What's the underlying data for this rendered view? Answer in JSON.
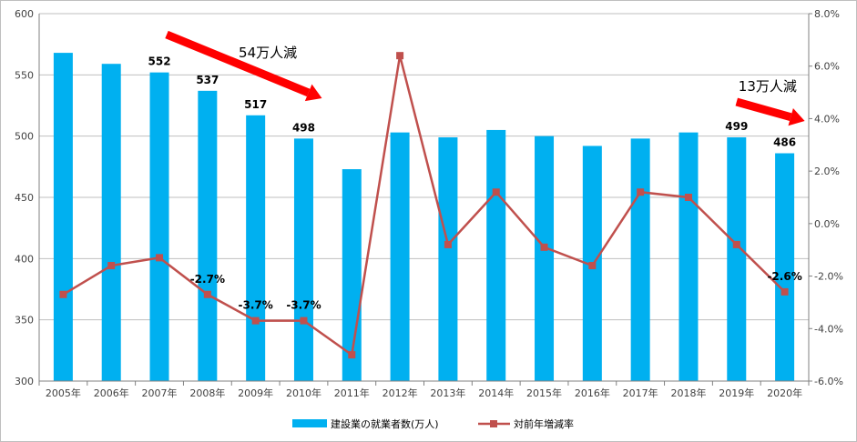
{
  "chart_data": {
    "type": "bar+line",
    "categories": [
      "2005年",
      "2006年",
      "2007年",
      "2008年",
      "2009年",
      "2010年",
      "2011年",
      "2012年",
      "2013年",
      "2014年",
      "2015年",
      "2016年",
      "2017年",
      "2018年",
      "2019年",
      "2020年"
    ],
    "series": [
      {
        "name": "建設業の就業者数(万人)",
        "type": "bar",
        "axis": "left",
        "color": "#00b0f0",
        "values": [
          568,
          559,
          552,
          537,
          517,
          498,
          473,
          503,
          499,
          505,
          500,
          492,
          498,
          503,
          499,
          486
        ]
      },
      {
        "name": "対前年増減率",
        "type": "line",
        "axis": "right",
        "color": "#c0504d",
        "values": [
          -2.7,
          -1.6,
          -1.3,
          -2.7,
          -3.7,
          -3.7,
          -5.0,
          6.4,
          -0.8,
          1.2,
          -0.9,
          -1.6,
          1.2,
          1.0,
          -0.8,
          -2.6
        ]
      }
    ],
    "y_left": {
      "min": 300,
      "max": 600,
      "ticks": [
        "300",
        "350",
        "400",
        "450",
        "500",
        "550",
        "600"
      ]
    },
    "y_right": {
      "min": -6,
      "max": 8,
      "ticks": [
        "-6.0%",
        "-4.0%",
        "-2.0%",
        "0.0%",
        "2.0%",
        "4.0%",
        "6.0%",
        "8.0%"
      ]
    },
    "bar_labels": [
      {
        "index": 2,
        "text": "552"
      },
      {
        "index": 3,
        "text": "537"
      },
      {
        "index": 4,
        "text": "517"
      },
      {
        "index": 5,
        "text": "498"
      },
      {
        "index": 14,
        "text": "499"
      },
      {
        "index": 15,
        "text": "486"
      }
    ],
    "line_labels": [
      {
        "index": 3,
        "text": "-2.7%"
      },
      {
        "index": 4,
        "text": "-3.7%"
      },
      {
        "index": 5,
        "text": "-3.7%"
      },
      {
        "index": 15,
        "text": "-2.6%"
      }
    ],
    "annotations": [
      {
        "text": "54万人減",
        "from_index": 2,
        "to_index": 5
      },
      {
        "text": "13万人減",
        "from_index": 14,
        "to_index": 15
      }
    ],
    "arrow_color": "#ff0000",
    "legend": {
      "position": "bottom"
    }
  }
}
